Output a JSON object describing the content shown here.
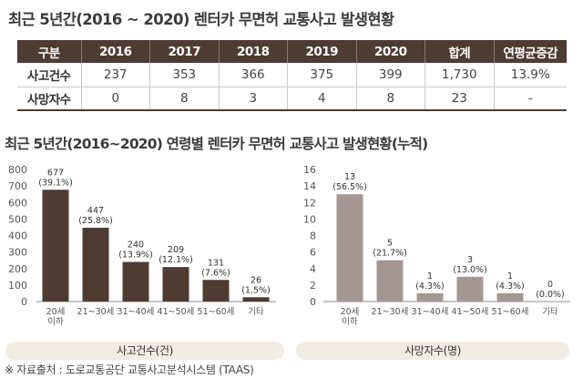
{
  "title": "최근 5년간(2016 ~ 2020) 렌터카 무면허 교통사고 발생현황",
  "table": {
    "headers": [
      "구분",
      "2016",
      "2017",
      "2018",
      "2019",
      "2020",
      "합계",
      "연평균증감"
    ],
    "rows": [
      {
        "label": "사고건수",
        "cells": [
          "237",
          "353",
          "366",
          "375",
          "399",
          "1,730",
          "13.9%"
        ]
      },
      {
        "label": "사망자수",
        "cells": [
          "0",
          "8",
          "3",
          "4",
          "8",
          "23",
          "-"
        ]
      }
    ]
  },
  "subtitle": "최근 5년간(2016~2020) 연령별 렌터카 무면허 교통사고 발생현황(누적)",
  "colors": {
    "left_bars": "#4e3b32",
    "right_bars": "#a49693",
    "header_bg": "#4e3b32",
    "pill_bg": "#f3ece3"
  },
  "chart_data": [
    {
      "type": "bar",
      "categories": [
        "20세\n이하",
        "21~30세",
        "31~40세",
        "41~50세",
        "51~60세",
        "기타"
      ],
      "values": [
        677,
        447,
        240,
        209,
        131,
        26
      ],
      "data_labels": [
        [
          "677",
          "(39.1%)"
        ],
        [
          "447",
          "(25.8%)"
        ],
        [
          "240",
          "(13.9%)"
        ],
        [
          "209",
          "(12.1%)"
        ],
        [
          "131",
          "(7.6%)"
        ],
        [
          "26",
          "(1.5%)"
        ]
      ],
      "ylim": [
        0,
        800
      ],
      "yticks": [
        "0",
        "100",
        "200",
        "300",
        "400",
        "500",
        "600",
        "700",
        "800"
      ],
      "xlabel": "사고건수(건)",
      "grid": false
    },
    {
      "type": "bar",
      "categories": [
        "20세\n이하",
        "21~30세",
        "31~40세",
        "41~50세",
        "51~60세",
        "기타"
      ],
      "values": [
        13,
        5,
        1,
        3,
        1,
        0
      ],
      "data_labels": [
        [
          "13",
          "(56.5%)"
        ],
        [
          "5",
          "(21.7%)"
        ],
        [
          "1",
          "(4.3%)"
        ],
        [
          "3",
          "(13.0%)"
        ],
        [
          "1",
          "(4.3%)"
        ],
        [
          "0",
          "(0.0%)"
        ]
      ],
      "ylim": [
        0,
        16
      ],
      "yticks": [
        "0",
        "2",
        "4",
        "6",
        "8",
        "10",
        "12",
        "14",
        "16"
      ],
      "xlabel": "사망자수(명)",
      "grid": false
    }
  ],
  "source": "※ 자료출처 : 도로교통공단 교통사고분석시스템 (TAAS)"
}
